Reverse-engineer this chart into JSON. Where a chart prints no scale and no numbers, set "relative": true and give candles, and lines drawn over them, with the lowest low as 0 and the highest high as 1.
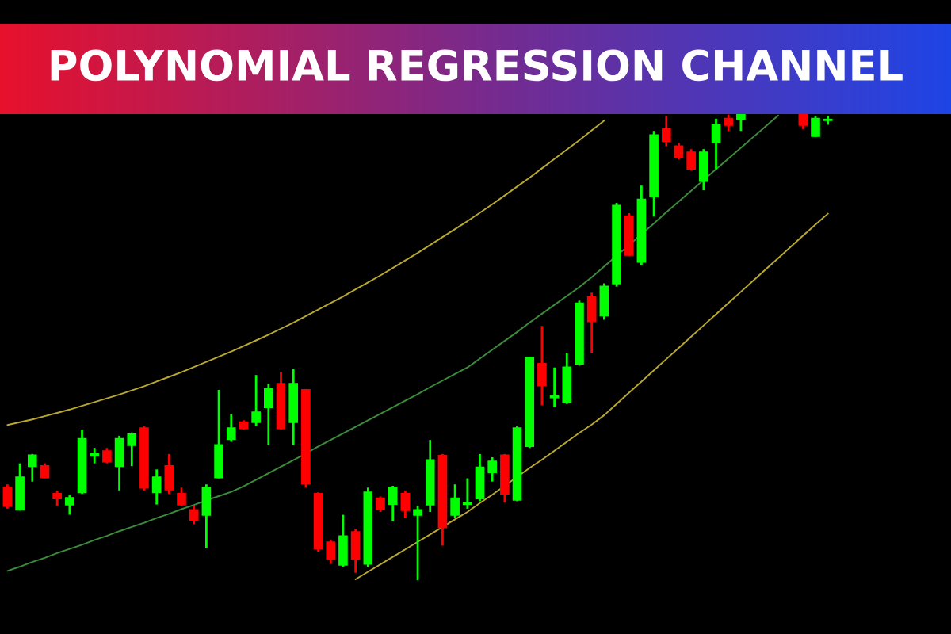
{
  "chart_data": {
    "type": "candlestick",
    "title": "POLYNOMIAL REGRESSION CHANNEL",
    "relative": true,
    "categories": [
      null,
      null,
      null,
      null,
      null,
      null,
      null,
      null,
      null,
      null,
      null,
      null,
      null,
      null,
      null,
      null,
      null,
      null,
      null,
      null,
      null,
      null,
      null,
      null,
      null,
      null,
      null,
      null,
      null,
      null,
      null,
      null,
      null,
      null,
      null,
      null,
      null,
      null,
      null,
      null,
      null,
      null,
      null,
      null,
      null,
      null,
      null,
      null,
      null,
      null,
      null,
      null,
      null,
      null,
      null,
      null,
      null,
      null,
      null,
      null,
      null,
      null,
      null,
      null,
      null,
      null,
      null
    ],
    "ohlc": [
      [
        0.198,
        0.205,
        0.153,
        0.159
      ],
      [
        0.151,
        0.25,
        0.149,
        0.22
      ],
      [
        0.244,
        0.27,
        0.211,
        0.267
      ],
      [
        0.244,
        0.25,
        0.218,
        0.22
      ],
      [
        0.185,
        0.192,
        0.159,
        0.175
      ],
      [
        0.162,
        0.183,
        0.14,
        0.176
      ],
      [
        0.188,
        0.322,
        0.185,
        0.302
      ],
      [
        0.266,
        0.283,
        0.25,
        0.27
      ],
      [
        0.276,
        0.283,
        0.25,
        0.254
      ],
      [
        0.244,
        0.309,
        0.192,
        0.302
      ],
      [
        0.289,
        0.316,
        0.244,
        0.312
      ],
      [
        0.325,
        0.329,
        0.192,
        0.198
      ],
      [
        0.188,
        0.237,
        0.162,
        0.22
      ],
      [
        0.244,
        0.27,
        0.185,
        0.194
      ],
      [
        0.185,
        0.198,
        0.159,
        0.162
      ],
      [
        0.15,
        0.159,
        0.12,
        0.129
      ],
      [
        0.14,
        0.205,
        0.068,
        0.198
      ],
      [
        0.22,
        0.407,
        0.218,
        0.289
      ],
      [
        0.302,
        0.355,
        0.296,
        0.325
      ],
      [
        0.338,
        0.342,
        0.322,
        0.325
      ],
      [
        0.338,
        0.439,
        0.329,
        0.359
      ],
      [
        0.37,
        0.42,
        0.289,
        0.409
      ],
      [
        0.42,
        0.446,
        0.322,
        0.325
      ],
      [
        0.338,
        0.452,
        0.289,
        0.42
      ],
      [
        0.407,
        0.409,
        0.198,
        0.207
      ],
      [
        0.185,
        0.188,
        0.061,
        0.068
      ],
      [
        0.081,
        0.087,
        0.035,
        0.046
      ],
      [
        0.033,
        0.14,
        0.029,
        0.094
      ],
      [
        0.103,
        0.11,
        0.016,
        0.046
      ],
      [
        0.035,
        0.198,
        0.029,
        0.188
      ],
      [
        0.175,
        0.179,
        0.146,
        0.153
      ],
      [
        0.163,
        0.202,
        0.126,
        0.198
      ],
      [
        0.185,
        0.192,
        0.133,
        0.15
      ],
      [
        0.14,
        0.159,
        0.0,
        0.15
      ],
      [
        0.162,
        0.3,
        0.146,
        0.257
      ],
      [
        0.266,
        0.27,
        0.074,
        0.113
      ],
      [
        0.14,
        0.205,
        0.133,
        0.175
      ],
      [
        0.163,
        0.218,
        0.153,
        0.166
      ],
      [
        0.175,
        0.27,
        0.169,
        0.241
      ],
      [
        0.231,
        0.263,
        0.211,
        0.254
      ],
      [
        0.267,
        0.27,
        0.166,
        0.185
      ],
      [
        0.172,
        0.329,
        0.169,
        0.325
      ],
      [
        0.287,
        0.478,
        0.283,
        0.476
      ],
      [
        0.463,
        0.544,
        0.374,
        0.417
      ],
      [
        0.391,
        0.455,
        0.37,
        0.394
      ],
      [
        0.381,
        0.485,
        0.377,
        0.455
      ],
      [
        0.463,
        0.598,
        0.459,
        0.592
      ],
      [
        0.605,
        0.615,
        0.485,
        0.554
      ],
      [
        0.566,
        0.635,
        0.557,
        0.628
      ],
      [
        0.635,
        0.807,
        0.628,
        0.801
      ],
      [
        0.778,
        0.785,
        0.694,
        0.696
      ],
      [
        0.681,
        0.844,
        0.674,
        0.814
      ],
      [
        0.821,
        0.961,
        0.778,
        0.952
      ],
      [
        0.965,
        0.993,
        0.928,
        0.939
      ],
      [
        0.928,
        0.935,
        0.9,
        0.905
      ],
      [
        0.915,
        0.922,
        0.876,
        0.88
      ],
      [
        0.854,
        0.922,
        0.834,
        0.915
      ],
      [
        0.937,
        0.987,
        0.879,
        0.974
      ],
      [
        0.987,
        0.996,
        0.961,
        0.974
      ],
      [
        0.987,
        1.0,
        0.961,
        0.997
      ],
      null,
      null,
      null,
      null,
      [
        0.996,
        1.0,
        0.965,
        0.974
      ],
      [
        0.95,
        0.993,
        0.948,
        0.987
      ],
      [
        0.984,
        0.993,
        0.974,
        0.985
      ]
    ],
    "colors": [
      "#ff0000",
      "#00ff00",
      "#00ff00",
      "#ff0000",
      "#ff0000",
      "#00ff00",
      "#00ff00",
      "#00ff00",
      "#ff0000",
      "#00ff00",
      "#00ff00",
      "#ff0000",
      "#00ff00",
      "#ff0000",
      "#ff0000",
      "#ff0000",
      "#00ff00",
      "#00ff00",
      "#00ff00",
      "#ff0000",
      "#00ff00",
      "#00ff00",
      "#ff0000",
      "#00ff00",
      "#ff0000",
      "#ff0000",
      "#ff0000",
      "#00ff00",
      "#ff0000",
      "#00ff00",
      "#ff0000",
      "#00ff00",
      "#ff0000",
      "#00ff00",
      "#00ff00",
      "#ff0000",
      "#00ff00",
      "#00ff00",
      "#00ff00",
      "#00ff00",
      "#ff0000",
      "#00ff00",
      "#00ff00",
      "#ff0000",
      "#00ff00",
      "#00ff00",
      "#00ff00",
      "#ff0000",
      "#00ff00",
      "#00ff00",
      "#ff0000",
      "#00ff00",
      "#00ff00",
      "#ff0000",
      "#ff0000",
      "#ff0000",
      "#00ff00",
      "#00ff00",
      "#ff0000",
      "#00ff00",
      null,
      null,
      null,
      null,
      "#ff0000",
      "#00ff00",
      "#00ff00"
    ],
    "series": [
      {
        "type": "line",
        "color": "#b8a830",
        "values": [
          0.332,
          0.338,
          0.344,
          0.351,
          0.358,
          0.365,
          0.373,
          0.381,
          0.389,
          0.397,
          0.406,
          0.415,
          0.425,
          0.435,
          0.445,
          0.456,
          0.467,
          0.478,
          0.489,
          0.501,
          0.513,
          0.525,
          0.538,
          0.551,
          0.565,
          0.579,
          0.593,
          0.607,
          0.622,
          0.637,
          0.652,
          0.668,
          0.684,
          0.7,
          0.717,
          0.734,
          0.751,
          0.768,
          0.786,
          0.804,
          0.823,
          0.842,
          0.861,
          0.881,
          0.901,
          0.921,
          0.941,
          0.962,
          0.983,
          null,
          null,
          null,
          null,
          null,
          null,
          null,
          null,
          null,
          null,
          null,
          null,
          null,
          null,
          null,
          null,
          null,
          null
        ]
      },
      {
        "type": "line",
        "color": "#3c8c3c",
        "values": [
          0.02,
          0.029,
          0.039,
          0.048,
          0.058,
          0.067,
          0.076,
          0.086,
          0.095,
          0.105,
          0.114,
          0.123,
          0.133,
          0.142,
          0.152,
          0.161,
          0.171,
          0.18,
          0.189,
          0.201,
          0.215,
          0.229,
          0.243,
          0.257,
          0.271,
          0.286,
          0.3,
          0.314,
          0.328,
          0.342,
          0.356,
          0.37,
          0.384,
          0.398,
          0.413,
          0.427,
          0.441,
          0.455,
          0.474,
          0.493,
          0.512,
          0.531,
          0.551,
          0.57,
          0.589,
          0.608,
          0.627,
          0.648,
          0.671,
          0.694,
          0.717,
          0.74,
          0.763,
          0.787,
          0.81,
          0.833,
          0.856,
          0.879,
          0.902,
          0.925,
          0.948,
          0.971,
          0.994,
          null,
          null,
          null,
          null
        ]
      },
      {
        "type": "line",
        "color": "#b8a830",
        "values": [
          null,
          null,
          null,
          null,
          null,
          null,
          null,
          null,
          null,
          null,
          null,
          null,
          null,
          null,
          null,
          null,
          null,
          null,
          null,
          null,
          null,
          null,
          null,
          null,
          null,
          null,
          null,
          null,
          0.002,
          0.018,
          0.034,
          0.05,
          0.066,
          0.082,
          0.098,
          0.114,
          0.13,
          0.146,
          0.165,
          0.183,
          0.202,
          0.221,
          0.24,
          0.258,
          0.277,
          0.296,
          0.315,
          0.333,
          0.353,
          0.377,
          0.401,
          0.425,
          0.449,
          0.473,
          0.497,
          0.521,
          0.545,
          0.569,
          0.593,
          0.617,
          0.641,
          0.665,
          0.689,
          0.713,
          0.737,
          0.761,
          0.784
        ]
      }
    ]
  }
}
